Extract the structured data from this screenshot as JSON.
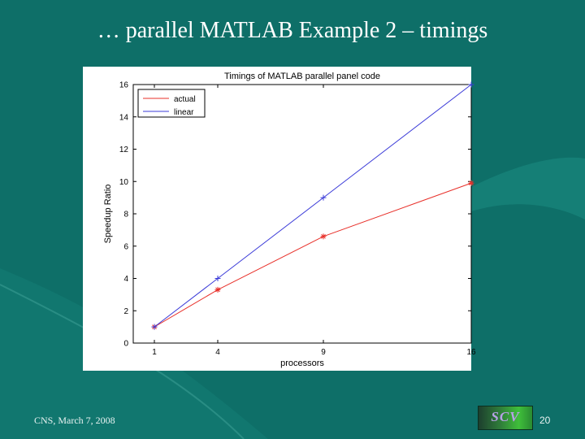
{
  "slide": {
    "title": "… parallel MATLAB Example 2 – timings",
    "footer": "CNS, March 7, 2008",
    "logo_text": "SCV",
    "page_number": "20"
  },
  "colors": {
    "background": "#0e6f68",
    "actual": "#e8302a",
    "linear": "#3b3bd8"
  },
  "chart_data": {
    "type": "line",
    "title": "Timings of MATLAB parallel panel code",
    "xlabel": "processors",
    "ylabel": "Speedup Ratio",
    "x": [
      1,
      4,
      9,
      16
    ],
    "xticks": [
      "1",
      "4",
      "9",
      "16"
    ],
    "xlim": [
      0,
      16
    ],
    "yticks": [
      "0",
      "2",
      "4",
      "6",
      "8",
      "10",
      "12",
      "14",
      "16"
    ],
    "ylim": [
      0,
      16
    ],
    "grid": false,
    "legend_position": "top-left",
    "series": [
      {
        "name": "actual",
        "color": "#e8302a",
        "marker": "*",
        "values": [
          1,
          3.3,
          6.6,
          9.9
        ]
      },
      {
        "name": "linear",
        "color": "#3b3bd8",
        "marker": "+",
        "values": [
          1,
          4,
          9,
          16
        ]
      }
    ]
  }
}
